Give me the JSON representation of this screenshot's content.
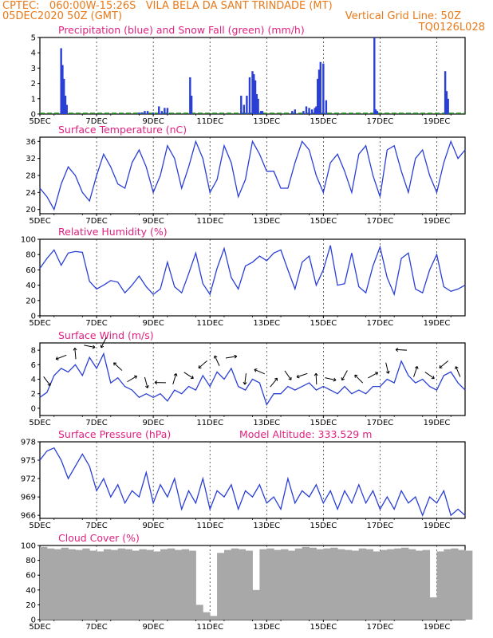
{
  "header": {
    "line1_left": "CPTEC:   060:00W-15:26S   VILA BELA DA SANT TRINDADE (MT)",
    "line2_left": "05DEC2020 50Z (GMT)",
    "line2_right": "Vertical Grid Line: 50Z",
    "line3_right": "TQ0126L028"
  },
  "colors": {
    "header": "#e87a1a",
    "title": "#e0217f",
    "series": "#2a3fd6",
    "snow": "#2ca02c",
    "cloud": "#a8a8a8"
  },
  "chart_data": [
    {
      "type": "bar",
      "title": "Precipitation (blue) and Snow Fall (green) (mm/h)",
      "xlabels": [
        "5DEC",
        "7DEC",
        "9DEC",
        "11DEC",
        "13DEC",
        "15DEC",
        "17DEC",
        "19DEC"
      ],
      "ylim": [
        0,
        5
      ],
      "yticks": [
        0,
        1,
        2,
        3,
        4,
        5
      ],
      "series": [
        {
          "name": "precipitation",
          "x": [
            5.75,
            5.8,
            5.85,
            5.9,
            5.95,
            8.5,
            8.6,
            8.7,
            8.8,
            9.0,
            9.2,
            9.3,
            9.4,
            9.5,
            10.3,
            10.35,
            12.1,
            12.2,
            12.3,
            12.4,
            12.5,
            12.55,
            12.6,
            12.65,
            12.7,
            12.8,
            12.85,
            13.9,
            14.0,
            14.3,
            14.4,
            14.5,
            14.6,
            14.7,
            14.75,
            14.8,
            14.85,
            14.9,
            15.0,
            15.1,
            16.8,
            16.85,
            16.9,
            19.3,
            19.35,
            19.4
          ],
          "values": [
            4.3,
            3.2,
            2.3,
            1.2,
            0.6,
            0.1,
            0.1,
            0.2,
            0.2,
            0.1,
            0.5,
            0.2,
            0.4,
            0.4,
            2.4,
            1.2,
            1.2,
            0.6,
            1.2,
            2.4,
            2.8,
            2.6,
            2.2,
            1.3,
            1.0,
            0.2,
            0.2,
            0.2,
            0.3,
            0.2,
            0.5,
            0.4,
            0.3,
            0.4,
            0.5,
            2.3,
            2.9,
            3.4,
            3.3,
            0.9,
            5.0,
            0.3,
            0.2,
            2.8,
            1.5,
            1.0
          ]
        }
      ]
    },
    {
      "type": "line",
      "title": "Surface Temperature (nC)",
      "xlabels": [
        "5DEC",
        "7DEC",
        "9DEC",
        "11DEC",
        "13DEC",
        "15DEC",
        "17DEC",
        "19DEC"
      ],
      "ylim": [
        19,
        37
      ],
      "yticks": [
        20,
        24,
        28,
        32,
        36
      ],
      "series": [
        {
          "name": "temperature",
          "x": [
            5.0,
            5.25,
            5.5,
            5.75,
            6.0,
            6.25,
            6.5,
            6.75,
            7.0,
            7.25,
            7.5,
            7.75,
            8.0,
            8.25,
            8.5,
            8.75,
            9.0,
            9.25,
            9.5,
            9.75,
            10.0,
            10.25,
            10.5,
            10.75,
            11.0,
            11.25,
            11.5,
            11.75,
            12.0,
            12.25,
            12.5,
            12.75,
            13.0,
            13.25,
            13.5,
            13.75,
            14.0,
            14.25,
            14.5,
            14.75,
            15.0,
            15.25,
            15.5,
            15.75,
            16.0,
            16.25,
            16.5,
            16.75,
            17.0,
            17.25,
            17.5,
            17.75,
            18.0,
            18.25,
            18.5,
            18.75,
            19.0,
            19.25,
            19.5,
            19.75,
            20.0
          ],
          "values": [
            25,
            23,
            20,
            26,
            30,
            28,
            24,
            22,
            28,
            33,
            30,
            26,
            25,
            31,
            34,
            30,
            24,
            28,
            35,
            32,
            25,
            30,
            36,
            32,
            24,
            27,
            35,
            31,
            23,
            27,
            36,
            33,
            29,
            29,
            25,
            25,
            31,
            36,
            34,
            28,
            24,
            31,
            33,
            29,
            24,
            33,
            35,
            28,
            23,
            34,
            35,
            29,
            24,
            32,
            34,
            28,
            24,
            31,
            36,
            32,
            34
          ]
        }
      ]
    },
    {
      "type": "line",
      "title": "Relative Humidity (%)",
      "xlabels": [
        "5DEC",
        "7DEC",
        "9DEC",
        "11DEC",
        "13DEC",
        "15DEC",
        "17DEC",
        "19DEC"
      ],
      "ylim": [
        0,
        100
      ],
      "yticks": [
        0,
        20,
        40,
        60,
        80,
        100
      ],
      "series": [
        {
          "name": "humidity",
          "x": [
            5.0,
            5.25,
            5.5,
            5.75,
            6.0,
            6.25,
            6.5,
            6.75,
            7.0,
            7.25,
            7.5,
            7.75,
            8.0,
            8.25,
            8.5,
            8.75,
            9.0,
            9.25,
            9.5,
            9.75,
            10.0,
            10.25,
            10.5,
            10.75,
            11.0,
            11.25,
            11.5,
            11.75,
            12.0,
            12.25,
            12.5,
            12.75,
            13.0,
            13.25,
            13.5,
            13.75,
            14.0,
            14.25,
            14.5,
            14.75,
            15.0,
            15.25,
            15.5,
            15.75,
            16.0,
            16.25,
            16.5,
            16.75,
            17.0,
            17.25,
            17.5,
            17.75,
            18.0,
            18.25,
            18.5,
            18.75,
            19.0,
            19.25,
            19.5,
            19.75,
            20.0
          ],
          "values": [
            62,
            75,
            86,
            66,
            82,
            84,
            83,
            45,
            35,
            40,
            46,
            44,
            30,
            40,
            52,
            38,
            28,
            35,
            70,
            38,
            30,
            55,
            82,
            42,
            28,
            62,
            88,
            50,
            35,
            65,
            70,
            78,
            72,
            82,
            86,
            60,
            35,
            70,
            78,
            40,
            60,
            92,
            40,
            42,
            82,
            38,
            30,
            65,
            90,
            50,
            28,
            75,
            82,
            35,
            30,
            60,
            80,
            38,
            32,
            35,
            40
          ]
        }
      ]
    },
    {
      "type": "line",
      "title": "Surface Wind (m/s)",
      "xlabels": [
        "5DEC",
        "7DEC",
        "9DEC",
        "11DEC",
        "13DEC",
        "15DEC",
        "17DEC",
        "19DEC"
      ],
      "ylim": [
        -1,
        9
      ],
      "yticks": [
        0,
        2,
        4,
        6,
        8
      ],
      "series": [
        {
          "name": "wind speed",
          "x": [
            5.0,
            5.25,
            5.5,
            5.75,
            6.0,
            6.25,
            6.5,
            6.75,
            7.0,
            7.25,
            7.5,
            7.75,
            8.0,
            8.25,
            8.5,
            8.75,
            9.0,
            9.25,
            9.5,
            9.75,
            10.0,
            10.25,
            10.5,
            10.75,
            11.0,
            11.25,
            11.5,
            11.75,
            12.0,
            12.25,
            12.5,
            12.75,
            13.0,
            13.25,
            13.5,
            13.75,
            14.0,
            14.25,
            14.5,
            14.75,
            15.0,
            15.25,
            15.5,
            15.75,
            16.0,
            16.25,
            16.5,
            16.75,
            17.0,
            17.25,
            17.5,
            17.75,
            18.0,
            18.25,
            18.5,
            18.75,
            19.0,
            19.25,
            19.5,
            19.75,
            20.0
          ],
          "values": [
            1.5,
            2.2,
            4.5,
            5.5,
            5.0,
            6.0,
            4.5,
            7.0,
            5.5,
            7.5,
            3.5,
            4.2,
            3.0,
            2.5,
            1.5,
            2.0,
            1.5,
            2.0,
            1.0,
            2.5,
            2.0,
            3.0,
            2.5,
            4.5,
            3.0,
            5.0,
            4.0,
            5.5,
            3.0,
            2.5,
            4.0,
            3.5,
            0.5,
            2.0,
            2.0,
            3.0,
            2.5,
            3.0,
            3.5,
            2.5,
            3.0,
            2.5,
            2.0,
            3.0,
            2.0,
            2.5,
            2.0,
            3.0,
            3.0,
            4.0,
            3.5,
            6.5,
            4.5,
            3.5,
            4.0,
            3.0,
            2.5,
            4.5,
            5.0,
            3.5,
            2.5
          ]
        }
      ]
    },
    {
      "type": "line",
      "title": "Surface Pressure (hPa)",
      "annotation": "Model Altitude: 333.529  m",
      "xlabels": [
        "5DEC",
        "7DEC",
        "9DEC",
        "11DEC",
        "13DEC",
        "15DEC",
        "17DEC",
        "19DEC"
      ],
      "ylim": [
        965.5,
        978
      ],
      "yticks": [
        966,
        969,
        972,
        975,
        978
      ],
      "series": [
        {
          "name": "pressure",
          "x": [
            5.0,
            5.25,
            5.5,
            5.75,
            6.0,
            6.25,
            6.5,
            6.75,
            7.0,
            7.25,
            7.5,
            7.75,
            8.0,
            8.25,
            8.5,
            8.75,
            9.0,
            9.25,
            9.5,
            9.75,
            10.0,
            10.25,
            10.5,
            10.75,
            11.0,
            11.25,
            11.5,
            11.75,
            12.0,
            12.25,
            12.5,
            12.75,
            13.0,
            13.25,
            13.5,
            13.75,
            14.0,
            14.25,
            14.5,
            14.75,
            15.0,
            15.25,
            15.5,
            15.75,
            16.0,
            16.25,
            16.5,
            16.75,
            17.0,
            17.25,
            17.5,
            17.75,
            18.0,
            18.25,
            18.5,
            18.75,
            19.0,
            19.25,
            19.5,
            19.75,
            20.0
          ],
          "values": [
            975,
            976.5,
            977,
            975,
            972,
            974,
            976,
            974,
            970,
            972,
            969,
            971,
            968,
            970,
            969,
            973,
            968,
            971,
            969,
            972,
            967,
            970,
            968,
            972,
            967,
            970,
            969,
            971,
            967,
            970,
            969,
            971,
            968,
            969,
            967,
            972,
            968,
            970,
            969,
            971,
            968,
            970,
            967,
            970,
            968,
            971,
            968,
            970,
            967,
            969,
            967,
            970,
            968,
            969,
            966,
            969,
            968,
            970,
            966,
            967,
            966
          ]
        }
      ]
    },
    {
      "type": "area",
      "title": "Cloud Cover (%)",
      "xlabels": [
        "5DEC",
        "7DEC",
        "9DEC",
        "11DEC",
        "13DEC",
        "15DEC",
        "17DEC",
        "19DEC"
      ],
      "ylim": [
        0,
        100
      ],
      "yticks": [
        0,
        20,
        40,
        60,
        80,
        100
      ],
      "series": [
        {
          "name": "cloud cover",
          "x": [
            5.0,
            5.25,
            5.5,
            5.75,
            6.0,
            6.25,
            6.5,
            6.75,
            7.0,
            7.25,
            7.5,
            7.75,
            8.0,
            8.25,
            8.5,
            8.75,
            9.0,
            9.25,
            9.5,
            9.75,
            10.0,
            10.25,
            10.5,
            10.75,
            11.0,
            11.25,
            11.5,
            11.75,
            12.0,
            12.25,
            12.5,
            12.75,
            13.0,
            13.25,
            13.5,
            13.75,
            14.0,
            14.25,
            14.5,
            14.75,
            15.0,
            15.25,
            15.5,
            15.75,
            16.0,
            16.25,
            16.5,
            16.75,
            17.0,
            17.25,
            17.5,
            17.75,
            18.0,
            18.25,
            18.5,
            18.75,
            19.0,
            19.25,
            19.5,
            19.75,
            20.0
          ],
          "values": [
            98,
            96,
            95,
            97,
            95,
            94,
            96,
            93,
            92,
            95,
            94,
            96,
            95,
            93,
            95,
            94,
            92,
            95,
            96,
            94,
            95,
            93,
            20,
            10,
            5,
            90,
            94,
            96,
            95,
            93,
            40,
            95,
            96,
            94,
            95,
            93,
            96,
            98,
            97,
            95,
            96,
            97,
            95,
            94,
            93,
            96,
            95,
            92,
            94,
            95,
            96,
            97,
            95,
            93,
            94,
            30,
            92,
            95,
            96,
            94,
            93
          ]
        }
      ]
    }
  ]
}
